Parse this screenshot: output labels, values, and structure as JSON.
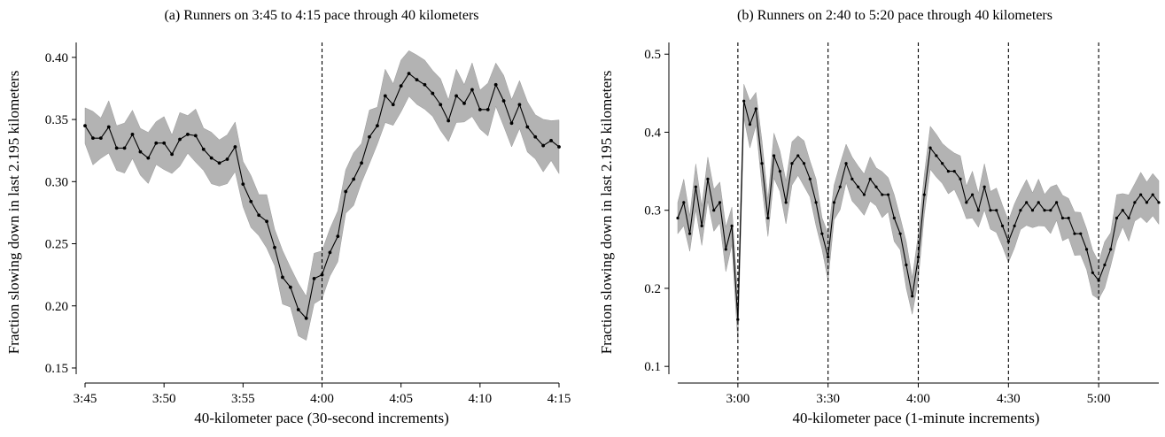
{
  "chart_data": [
    {
      "type": "line",
      "title": "(a) Runners on 3:45 to 4:15 pace through 40 kilometers",
      "xlabel": "40-kilometer pace (30-second increments)",
      "ylabel": "Fraction slowing down in last 2.195 kilometers",
      "x_unit": "minutes",
      "xlim": [
        225,
        255
      ],
      "ylim": [
        0.145,
        0.412
      ],
      "xticks": [
        225,
        230,
        235,
        240,
        245,
        250,
        255
      ],
      "xtick_labels": [
        "3:45",
        "3:50",
        "3:55",
        "4:00",
        "4:05",
        "4:10",
        "4:15"
      ],
      "yticks": [
        0.15,
        0.2,
        0.25,
        0.3,
        0.35,
        0.4
      ],
      "ytick_labels": [
        "0.15",
        "0.20",
        "0.25",
        "0.30",
        "0.35",
        "0.40"
      ],
      "reference_lines_x": [
        240
      ],
      "x": [
        225,
        225.5,
        226,
        226.5,
        227,
        227.5,
        228,
        228.5,
        229,
        229.5,
        230,
        230.5,
        231,
        231.5,
        232,
        232.5,
        233,
        233.5,
        234,
        234.5,
        235,
        235.5,
        236,
        236.5,
        237,
        237.5,
        238,
        238.5,
        239,
        239.5,
        240,
        240.5,
        241,
        241.5,
        242,
        242.5,
        243,
        243.5,
        244,
        244.5,
        245,
        245.5,
        246,
        246.5,
        247,
        247.5,
        248,
        248.5,
        249,
        249.5,
        250,
        250.5,
        251,
        251.5,
        252,
        252.5,
        253,
        253.5,
        254,
        254.5,
        255
      ],
      "values": [
        0.345,
        0.335,
        0.335,
        0.344,
        0.327,
        0.327,
        0.338,
        0.324,
        0.319,
        0.331,
        0.331,
        0.322,
        0.334,
        0.338,
        0.337,
        0.326,
        0.319,
        0.315,
        0.318,
        0.328,
        0.298,
        0.284,
        0.273,
        0.268,
        0.247,
        0.223,
        0.215,
        0.197,
        0.19,
        0.222,
        0.225,
        0.243,
        0.256,
        0.292,
        0.302,
        0.315,
        0.336,
        0.345,
        0.369,
        0.362,
        0.377,
        0.387,
        0.382,
        0.378,
        0.371,
        0.362,
        0.349,
        0.369,
        0.363,
        0.374,
        0.358,
        0.358,
        0.378,
        0.365,
        0.347,
        0.362,
        0.344,
        0.336,
        0.329,
        0.333,
        0.328
      ],
      "ci_halfwidth": 0.018
    },
    {
      "type": "line",
      "title": "(b) Runners on 2:40 to 5:20 pace through 40 kilometers",
      "xlabel": "40-kilometer pace (1-minute increments)",
      "ylabel": "Fraction slowing down in last 2.195 kilometers",
      "x_unit": "minutes",
      "xlim": [
        160,
        320
      ],
      "ylim": [
        0.09,
        0.515
      ],
      "xticks": [
        180,
        210,
        240,
        270,
        300
      ],
      "xtick_labels": [
        "3:00",
        "3:30",
        "4:00",
        "4:30",
        "5:00"
      ],
      "yticks": [
        0.1,
        0.2,
        0.3,
        0.4,
        0.5
      ],
      "ytick_labels": [
        "0.1",
        "0.2",
        "0.3",
        "0.4",
        "0.5"
      ],
      "reference_lines_x": [
        180,
        210,
        240,
        270,
        300
      ],
      "x": [
        160,
        162,
        164,
        166,
        168,
        170,
        172,
        174,
        176,
        178,
        180,
        182,
        184,
        186,
        188,
        190,
        192,
        194,
        196,
        198,
        200,
        202,
        204,
        206,
        208,
        210,
        212,
        214,
        216,
        218,
        220,
        222,
        224,
        226,
        228,
        230,
        232,
        234,
        236,
        238,
        240,
        242,
        244,
        246,
        248,
        250,
        252,
        254,
        256,
        258,
        260,
        262,
        264,
        266,
        268,
        270,
        272,
        274,
        276,
        278,
        280,
        282,
        284,
        286,
        288,
        290,
        292,
        294,
        296,
        298,
        300,
        302,
        304,
        306,
        308,
        310,
        312,
        314,
        316,
        318,
        320
      ],
      "values": [
        0.29,
        0.31,
        0.27,
        0.33,
        0.28,
        0.34,
        0.3,
        0.31,
        0.25,
        0.28,
        0.16,
        0.44,
        0.41,
        0.43,
        0.36,
        0.29,
        0.37,
        0.35,
        0.31,
        0.36,
        0.37,
        0.36,
        0.34,
        0.31,
        0.27,
        0.24,
        0.31,
        0.33,
        0.36,
        0.34,
        0.33,
        0.32,
        0.34,
        0.33,
        0.32,
        0.32,
        0.29,
        0.27,
        0.23,
        0.19,
        0.24,
        0.32,
        0.38,
        0.37,
        0.36,
        0.35,
        0.35,
        0.34,
        0.31,
        0.32,
        0.3,
        0.33,
        0.3,
        0.3,
        0.28,
        0.26,
        0.28,
        0.3,
        0.31,
        0.3,
        0.31,
        0.3,
        0.3,
        0.31,
        0.29,
        0.29,
        0.27,
        0.27,
        0.25,
        0.22,
        0.21,
        0.23,
        0.25,
        0.29,
        0.3,
        0.29,
        0.31,
        0.32,
        0.31,
        0.32,
        0.31
      ],
      "ci_halfwidth": 0.025
    }
  ]
}
